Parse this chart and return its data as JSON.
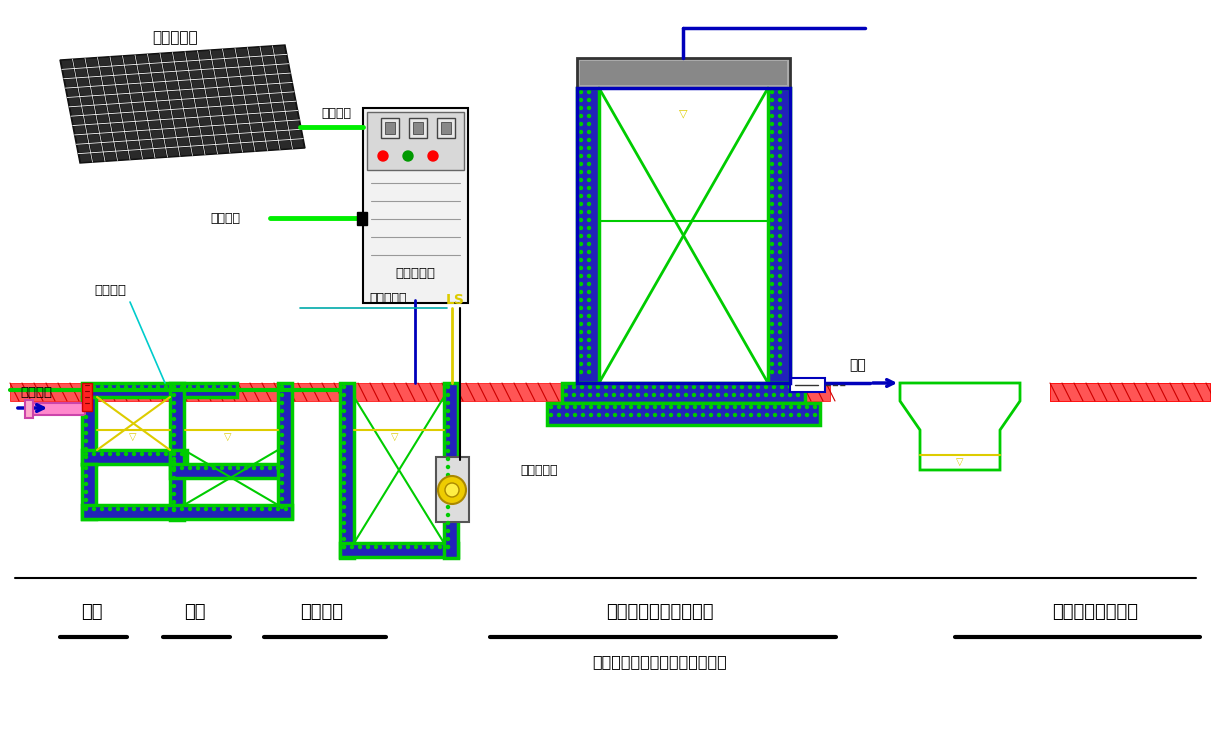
{
  "bg_color": "#ffffff",
  "labels": {
    "solar": "太阳能电源",
    "power_cable": "电源电缆",
    "backup_power": "备用电源",
    "control_cabinet": "智能控制柜",
    "grating_label": "人工格栅",
    "float_level": "浮球液位计",
    "ls": "LS",
    "sewage_pump": "污水提升泵",
    "discharge": "排放",
    "domestic_sewage": "生活污水",
    "label_grating": "格栅",
    "label_settle": "沉淀",
    "label_hydro": "水解酸化",
    "label_bio": "微动力多级生物反应器",
    "label_bio2": "（微动力一体化污水处理装置）",
    "label_pond": "受纳水体或生态塘"
  },
  "colors": {
    "wall": "#0000cc",
    "wall_fill": "#3333cc",
    "green_line": "#00cc00",
    "green_fill": "#00cc00",
    "yellow": "#ddcc00",
    "cyan": "#00cccc",
    "red": "#ff0000",
    "red_fill": "#ff5555",
    "ground_red": "#ff4444",
    "solar_dark": "#111111",
    "solar_grid": "#ffffff",
    "pink_pipe": "#ff88cc",
    "blue_dark": "#0000bb"
  }
}
